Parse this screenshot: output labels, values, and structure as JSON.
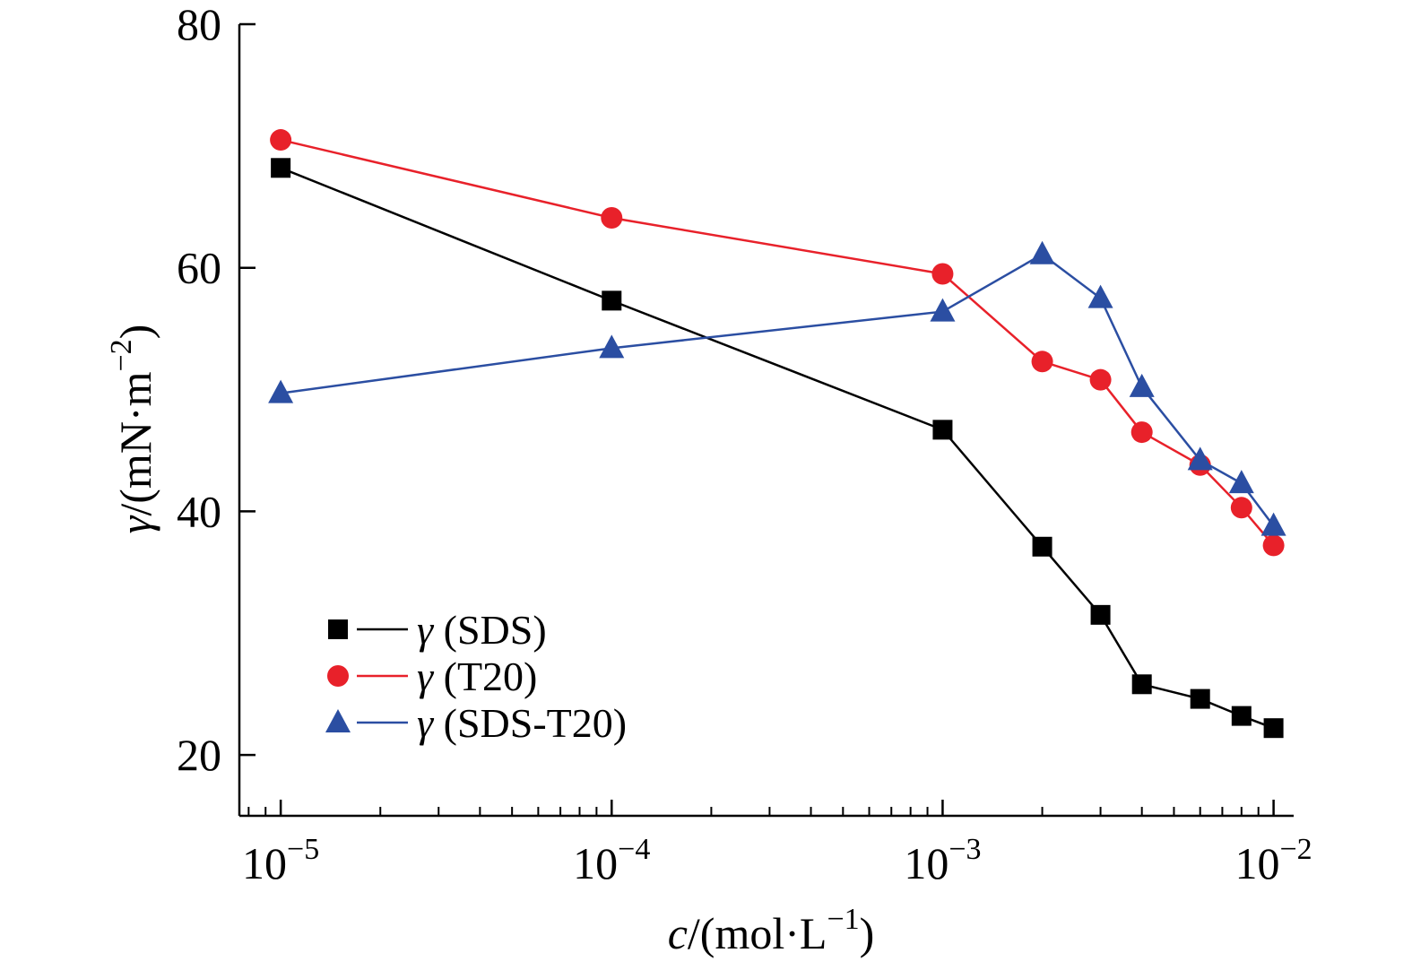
{
  "chart_data": {
    "type": "line",
    "xscale": "log",
    "xlim": [
      7.5e-06,
      0.0115
    ],
    "ylim": [
      15,
      80
    ],
    "xticks": [
      1e-05,
      0.0001,
      0.001,
      0.01
    ],
    "xtick_labels": [
      {
        "base": "10",
        "exp": "−5"
      },
      {
        "base": "10",
        "exp": "−4"
      },
      {
        "base": "10",
        "exp": "−3"
      },
      {
        "base": "10",
        "exp": "−2"
      }
    ],
    "yticks": [
      20,
      40,
      60,
      80
    ],
    "ytick_labels": [
      "20",
      "40",
      "60",
      "80"
    ],
    "xlabel": {
      "var": "c",
      "text": "/(mol·L",
      "exp": "−1",
      "close": ")"
    },
    "ylabel": {
      "var": "γ",
      "text": "/(mN·m",
      "exp": "−2",
      "close": ")"
    },
    "legend_position": "lower-left",
    "series": [
      {
        "name": "γ (SDS)",
        "legend_var": "γ",
        "legend_text": " (SDS)",
        "marker": "square",
        "color": "#000000",
        "x": [
          1e-05,
          0.0001,
          0.001,
          0.002,
          0.003,
          0.004,
          0.006,
          0.008,
          0.01
        ],
        "y": [
          68.2,
          57.3,
          46.7,
          37.1,
          31.5,
          25.8,
          24.6,
          23.2,
          22.2
        ]
      },
      {
        "name": "γ (T20)",
        "legend_var": "γ",
        "legend_text": " (T20)",
        "marker": "circle",
        "color": "#e8212a",
        "x": [
          1e-05,
          0.0001,
          0.001,
          0.002,
          0.003,
          0.004,
          0.006,
          0.008,
          0.01
        ],
        "y": [
          70.5,
          64.1,
          59.5,
          52.3,
          50.8,
          46.5,
          43.8,
          40.3,
          37.2
        ]
      },
      {
        "name": "γ (SDS-T20)",
        "legend_var": "γ",
        "legend_text": " (SDS-T20)",
        "marker": "triangle",
        "color": "#2b4ea2",
        "x": [
          1e-05,
          0.0001,
          0.001,
          0.002,
          0.003,
          0.004,
          0.006,
          0.008,
          0.01
        ],
        "y": [
          49.7,
          53.4,
          56.4,
          61.1,
          57.5,
          50.2,
          44.2,
          42.3,
          38.8
        ]
      }
    ]
  }
}
